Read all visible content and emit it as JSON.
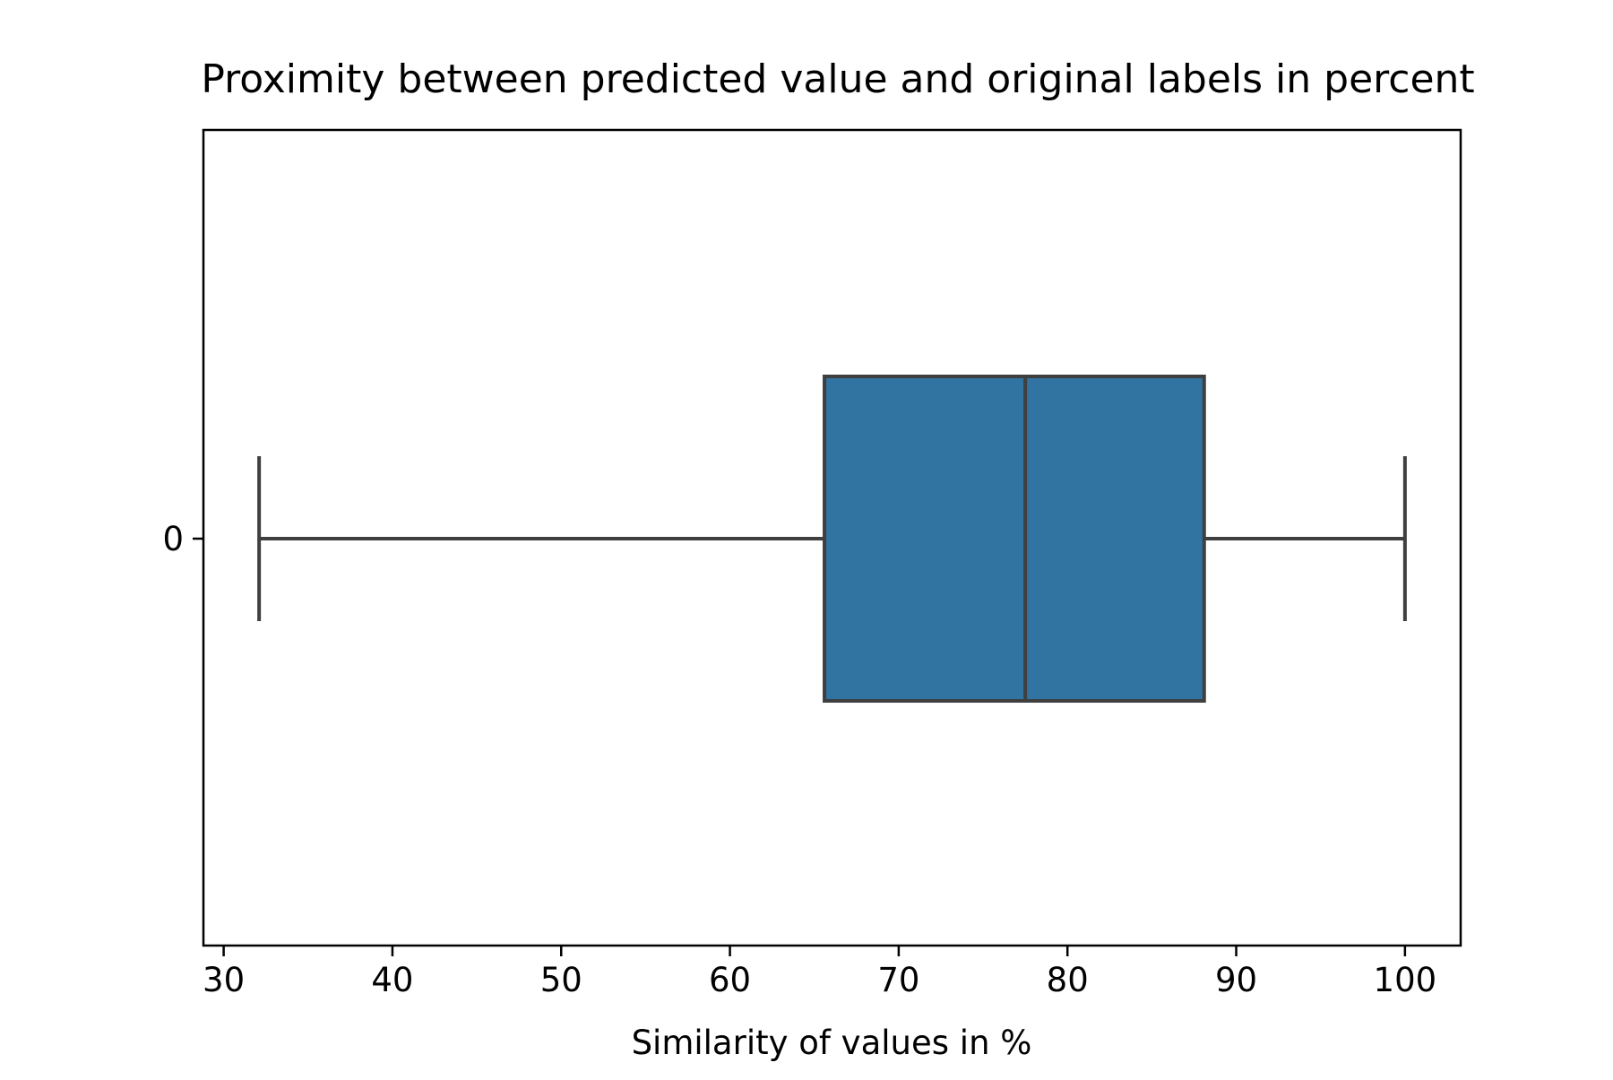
{
  "chart_data": {
    "type": "box",
    "title": "Proximity between predicted value and original labels in percent",
    "xlabel": "Similarity of values in %",
    "ylabel": "",
    "orientation": "horizontal",
    "xlim": [
      28.8,
      103.3
    ],
    "xticks": [
      30,
      40,
      50,
      60,
      70,
      80,
      90,
      100
    ],
    "yticks": [
      "0"
    ],
    "grid": false,
    "series": [
      {
        "category": "0",
        "whisker_low": 32.1,
        "q1": 65.6,
        "median": 77.5,
        "q3": 88.1,
        "whisker_high": 100.0
      }
    ],
    "colors": {
      "box_fill": "#3274a1",
      "line": "#3f3f3f",
      "frame": "#000000"
    }
  }
}
